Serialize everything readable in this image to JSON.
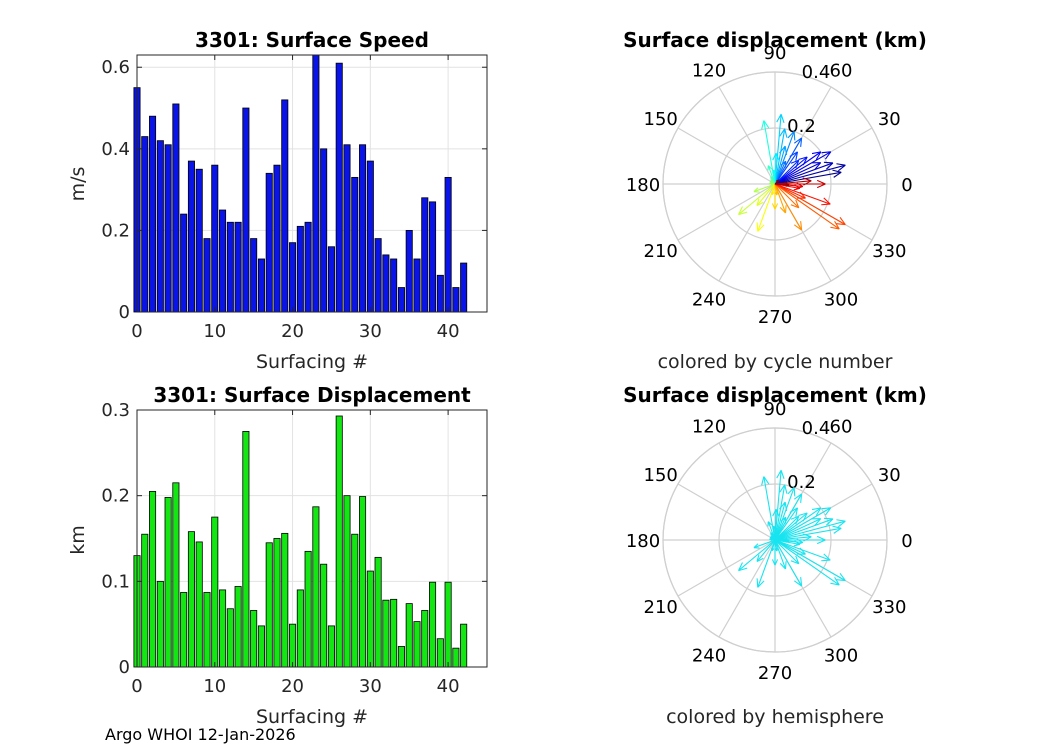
{
  "chart_data": [
    {
      "type": "bar",
      "title": "3301: Surface Speed",
      "xlabel": "Surfacing #",
      "ylabel": "m/s",
      "xlim": [
        0,
        45
      ],
      "ylim": [
        0,
        0.63
      ],
      "xticks": [
        0,
        10,
        20,
        30,
        40
      ],
      "yticks": [
        0,
        0.2,
        0.4,
        0.6
      ],
      "ytick_labels": [
        "0",
        "0.2",
        "0.4",
        "0.6"
      ],
      "grid": true,
      "bar_color": "#0a14e6",
      "x": [
        0,
        1,
        2,
        3,
        4,
        5,
        6,
        7,
        8,
        9,
        10,
        11,
        12,
        13,
        14,
        15,
        16,
        17,
        18,
        19,
        20,
        21,
        22,
        23,
        24,
        25,
        26,
        27,
        28,
        29,
        30,
        31,
        32,
        33,
        34,
        35,
        36,
        37,
        38,
        39,
        40,
        41,
        42
      ],
      "values": [
        0.55,
        0.43,
        0.48,
        0.42,
        0.41,
        0.51,
        0.24,
        0.37,
        0.35,
        0.18,
        0.36,
        0.25,
        0.22,
        0.22,
        0.5,
        0.18,
        0.13,
        0.34,
        0.36,
        0.52,
        0.17,
        0.21,
        0.22,
        0.63,
        0.4,
        0.16,
        0.61,
        0.41,
        0.33,
        0.41,
        0.37,
        0.18,
        0.14,
        0.13,
        0.06,
        0.2,
        0.13,
        0.28,
        0.27,
        0.09,
        0.33,
        0.06,
        0.12
      ]
    },
    {
      "type": "polar-compass",
      "title": "Surface displacement (km)",
      "caption": "colored by cycle number",
      "r_ticks": [
        0.2,
        0.4
      ],
      "r_tick_labels": [
        "0.2",
        "0.4"
      ],
      "r_max": 0.4,
      "angle_ticks": [
        0,
        30,
        60,
        90,
        120,
        150,
        180,
        210,
        240,
        270,
        300,
        330
      ],
      "vectors_deg_r": [
        [
          10,
          0.24
        ],
        [
          15,
          0.26
        ],
        [
          20,
          0.22
        ],
        [
          25,
          0.18
        ],
        [
          30,
          0.23
        ],
        [
          35,
          0.2
        ],
        [
          40,
          0.15
        ],
        [
          45,
          0.12
        ],
        [
          55,
          0.14
        ],
        [
          60,
          0.19
        ],
        [
          65,
          0.09
        ],
        [
          70,
          0.2
        ],
        [
          75,
          0.14
        ],
        [
          80,
          0.2
        ],
        [
          85,
          0.25
        ],
        [
          88,
          0.11
        ],
        [
          95,
          0.05
        ],
        [
          100,
          0.23
        ],
        [
          110,
          0.07
        ],
        [
          120,
          0.03
        ],
        [
          135,
          0.02
        ],
        [
          150,
          0.02
        ],
        [
          170,
          0.02
        ],
        [
          200,
          0.08
        ],
        [
          220,
          0.17
        ],
        [
          230,
          0.1
        ],
        [
          250,
          0.18
        ],
        [
          255,
          0.04
        ],
        [
          270,
          0.09
        ],
        [
          280,
          0.04
        ],
        [
          290,
          0.11
        ],
        [
          300,
          0.19
        ],
        [
          315,
          0.12
        ],
        [
          325,
          0.28
        ],
        [
          330,
          0.29
        ],
        [
          335,
          0.12
        ],
        [
          340,
          0.21
        ],
        [
          350,
          0.09
        ],
        [
          355,
          0.1
        ],
        [
          0,
          0.18
        ],
        [
          5,
          0.13
        ],
        [
          -5,
          0.05
        ],
        [
          45,
          0.02
        ]
      ]
    },
    {
      "type": "bar",
      "title": "3301: Surface Displacement",
      "xlabel": "Surfacing #",
      "ylabel": "km",
      "xlim": [
        0,
        45
      ],
      "ylim": [
        0,
        0.3
      ],
      "xticks": [
        0,
        10,
        20,
        30,
        40
      ],
      "yticks": [
        0,
        0.1,
        0.2,
        0.3
      ],
      "ytick_labels": [
        "0",
        "0.1",
        "0.2",
        "0.3"
      ],
      "grid": true,
      "bar_color": "#14e614",
      "x": [
        0,
        1,
        2,
        3,
        4,
        5,
        6,
        7,
        8,
        9,
        10,
        11,
        12,
        13,
        14,
        15,
        16,
        17,
        18,
        19,
        20,
        21,
        22,
        23,
        24,
        25,
        26,
        27,
        28,
        29,
        30,
        31,
        32,
        33,
        34,
        35,
        36,
        37,
        38,
        39,
        40,
        41,
        42
      ],
      "values": [
        0.13,
        0.155,
        0.205,
        0.1,
        0.198,
        0.215,
        0.087,
        0.158,
        0.146,
        0.087,
        0.175,
        0.09,
        0.068,
        0.094,
        0.275,
        0.066,
        0.048,
        0.145,
        0.15,
        0.156,
        0.05,
        0.09,
        0.135,
        0.187,
        0.12,
        0.048,
        0.293,
        0.2,
        0.155,
        0.199,
        0.112,
        0.128,
        0.078,
        0.079,
        0.024,
        0.074,
        0.053,
        0.066,
        0.099,
        0.033,
        0.099,
        0.022,
        0.05
      ]
    },
    {
      "type": "polar-compass",
      "title": "Surface displacement (km)",
      "caption": "colored by hemisphere",
      "r_ticks": [
        0.2,
        0.4
      ],
      "r_tick_labels": [
        "0.2",
        "0.4"
      ],
      "r_max": 0.4,
      "angle_ticks": [
        0,
        30,
        60,
        90,
        120,
        150,
        180,
        210,
        240,
        270,
        300,
        330
      ],
      "arrow_color": "#18e4f0",
      "vectors_deg_r": [
        [
          10,
          0.24
        ],
        [
          15,
          0.26
        ],
        [
          20,
          0.22
        ],
        [
          25,
          0.18
        ],
        [
          30,
          0.23
        ],
        [
          35,
          0.2
        ],
        [
          40,
          0.15
        ],
        [
          45,
          0.12
        ],
        [
          55,
          0.14
        ],
        [
          60,
          0.19
        ],
        [
          65,
          0.09
        ],
        [
          70,
          0.2
        ],
        [
          75,
          0.14
        ],
        [
          80,
          0.2
        ],
        [
          85,
          0.25
        ],
        [
          88,
          0.11
        ],
        [
          95,
          0.05
        ],
        [
          100,
          0.23
        ],
        [
          110,
          0.07
        ],
        [
          120,
          0.03
        ],
        [
          135,
          0.02
        ],
        [
          150,
          0.02
        ],
        [
          170,
          0.02
        ],
        [
          200,
          0.08
        ],
        [
          220,
          0.17
        ],
        [
          230,
          0.1
        ],
        [
          250,
          0.18
        ],
        [
          255,
          0.04
        ],
        [
          270,
          0.09
        ],
        [
          280,
          0.04
        ],
        [
          290,
          0.11
        ],
        [
          300,
          0.19
        ],
        [
          315,
          0.12
        ],
        [
          325,
          0.28
        ],
        [
          330,
          0.29
        ],
        [
          335,
          0.12
        ],
        [
          340,
          0.21
        ],
        [
          350,
          0.09
        ],
        [
          355,
          0.1
        ],
        [
          0,
          0.18
        ],
        [
          5,
          0.13
        ],
        [
          -5,
          0.05
        ],
        [
          45,
          0.02
        ]
      ]
    }
  ],
  "footer": "Argo WHOI 12-Jan-2026"
}
